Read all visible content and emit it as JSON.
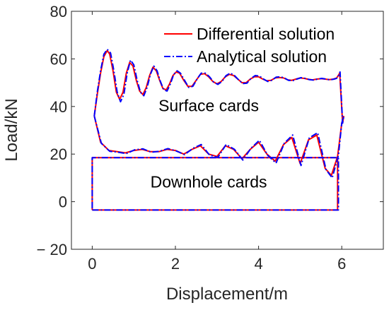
{
  "chart_data": {
    "type": "line",
    "xlabel": "Displacement/m",
    "ylabel": "Load/kN",
    "xlim": [
      -0.5,
      7
    ],
    "ylim": [
      -20,
      80
    ],
    "xticks": [
      0,
      2,
      4,
      6
    ],
    "yticks": [
      -20,
      0,
      20,
      40,
      60,
      80
    ],
    "ytick_labels": [
      "− 20",
      "0",
      "20",
      "40",
      "60",
      "80"
    ],
    "grid": false,
    "legend_position": "top-right",
    "annotations": [
      {
        "text": "Surface cards",
        "x": 2.8,
        "y": 38
      },
      {
        "text": "Downhole cards",
        "x": 2.8,
        "y": 6
      }
    ],
    "series": [
      {
        "name": "Differential solution",
        "color": "#ff0000",
        "style": "solid",
        "surface_upper": {
          "x": [
            0.05,
            0.12,
            0.2,
            0.28,
            0.36,
            0.42,
            0.5,
            0.58,
            0.66,
            0.74,
            0.82,
            0.9,
            0.98,
            1.06,
            1.14,
            1.22,
            1.3,
            1.38,
            1.46,
            1.54,
            1.62,
            1.7,
            1.78,
            1.86,
            1.94,
            2.02,
            2.1,
            2.2,
            2.3,
            2.4,
            2.5,
            2.6,
            2.7,
            2.8,
            2.9,
            3.0,
            3.1,
            3.2,
            3.3,
            3.4,
            3.5,
            3.6,
            3.7,
            3.8,
            3.9,
            4.0,
            4.1,
            4.2,
            4.3,
            4.4,
            4.5,
            4.6,
            4.7,
            4.8,
            4.9,
            5.0,
            5.1,
            5.2,
            5.3,
            5.4,
            5.5,
            5.6,
            5.7,
            5.8,
            5.88,
            5.95,
            6.02,
            6.05
          ],
          "y": [
            36,
            45,
            54,
            61,
            63.5,
            62,
            55,
            46,
            43,
            46,
            54,
            58.5,
            57,
            51,
            46.5,
            45,
            48,
            53,
            56.5,
            55,
            51,
            47.5,
            47,
            49.5,
            53,
            54.5,
            54,
            51,
            48.5,
            48.5,
            51,
            53.5,
            53.8,
            52.5,
            50.5,
            49.5,
            50.5,
            52.5,
            53.5,
            53,
            51.5,
            50,
            50,
            51.5,
            52.5,
            52.5,
            51.5,
            50.8,
            51,
            52,
            52.2,
            52,
            51.2,
            51,
            51.5,
            52,
            51.8,
            51.4,
            51.2,
            51.5,
            51.7,
            51.5,
            51.3,
            51.5,
            52,
            54,
            33,
            36
          ]
        },
        "surface_lower": {
          "x": [
            0.05,
            0.2,
            0.4,
            0.6,
            0.8,
            1.0,
            1.2,
            1.4,
            1.6,
            1.8,
            2.0,
            2.2,
            2.4,
            2.6,
            2.8,
            3.0,
            3.2,
            3.4,
            3.6,
            3.8,
            4.0,
            4.2,
            4.4,
            4.6,
            4.8,
            5.0,
            5.2,
            5.4,
            5.6,
            5.75,
            5.9,
            6.0,
            6.05
          ],
          "y": [
            36,
            25,
            21.5,
            21,
            20.5,
            21.5,
            22,
            21,
            21,
            22,
            21.5,
            20,
            22,
            23.5,
            20,
            19,
            23.5,
            22,
            18,
            22,
            25,
            20,
            17,
            24,
            27,
            16,
            26,
            28,
            14,
            11,
            19,
            33,
            36
          ]
        },
        "downhole": {
          "x": [
            0.0,
            5.9,
            5.9,
            0.0,
            0.0
          ],
          "y": [
            -3.5,
            -3.5,
            18.5,
            18.5,
            -3.5
          ]
        }
      },
      {
        "name": "Analytical solution",
        "color": "#0000ff",
        "style": "dashdot",
        "surface_upper": {
          "x": [
            0.05,
            0.12,
            0.2,
            0.28,
            0.36,
            0.44,
            0.52,
            0.6,
            0.68,
            0.76,
            0.84,
            0.92,
            1.0,
            1.08,
            1.16,
            1.24,
            1.32,
            1.4,
            1.48,
            1.56,
            1.64,
            1.72,
            1.8,
            1.88,
            1.96,
            2.04,
            2.12,
            2.22,
            2.32,
            2.42,
            2.52,
            2.62,
            2.72,
            2.82,
            2.92,
            3.02,
            3.12,
            3.22,
            3.32,
            3.42,
            3.52,
            3.62,
            3.72,
            3.82,
            3.92,
            4.02,
            4.12,
            4.22,
            4.32,
            4.42,
            4.52,
            4.62,
            4.72,
            4.82,
            4.92,
            5.02,
            5.12,
            5.22,
            5.32,
            5.42,
            5.52,
            5.62,
            5.72,
            5.82,
            5.9,
            5.96,
            6.02,
            6.05
          ],
          "y": [
            36,
            46,
            55,
            62,
            64,
            62.5,
            55,
            46,
            42,
            45,
            54,
            59.5,
            57.5,
            51,
            46,
            44.5,
            48,
            53.5,
            57,
            55,
            50.5,
            47,
            46.5,
            49.5,
            53.5,
            55,
            54,
            51,
            48,
            48.5,
            51.5,
            54,
            54,
            52.5,
            50.2,
            49.3,
            50.5,
            53,
            54,
            53,
            51.2,
            49.6,
            49.8,
            51.8,
            53,
            52.8,
            51.5,
            50.5,
            51,
            52.3,
            52.5,
            52,
            51,
            50.8,
            51.5,
            52.1,
            51.8,
            51.3,
            51.1,
            51.5,
            51.8,
            51.5,
            51.2,
            51.5,
            52,
            54.5,
            33,
            36
          ]
        },
        "surface_lower": {
          "x": [
            0.05,
            0.22,
            0.42,
            0.62,
            0.82,
            1.02,
            1.22,
            1.42,
            1.62,
            1.82,
            2.02,
            2.22,
            2.42,
            2.62,
            2.82,
            3.02,
            3.22,
            3.42,
            3.62,
            3.82,
            4.02,
            4.22,
            4.42,
            4.62,
            4.82,
            5.02,
            5.22,
            5.42,
            5.62,
            5.77,
            5.92,
            6.0,
            6.05
          ],
          "y": [
            36,
            24.5,
            21.2,
            20.8,
            20.2,
            21.8,
            22.2,
            20.8,
            21.2,
            22.3,
            21.3,
            19.8,
            22.4,
            24,
            19.6,
            18.6,
            24,
            22,
            17.5,
            22.5,
            25.8,
            19.5,
            16.2,
            24.6,
            28,
            15.2,
            26.8,
            29,
            13.5,
            10,
            19.5,
            33,
            36
          ]
        },
        "downhole": {
          "x": [
            0.0,
            5.92,
            5.92,
            0.0,
            0.0
          ],
          "y": [
            -3.5,
            -3.5,
            18.5,
            18.5,
            -3.5
          ]
        }
      }
    ]
  }
}
